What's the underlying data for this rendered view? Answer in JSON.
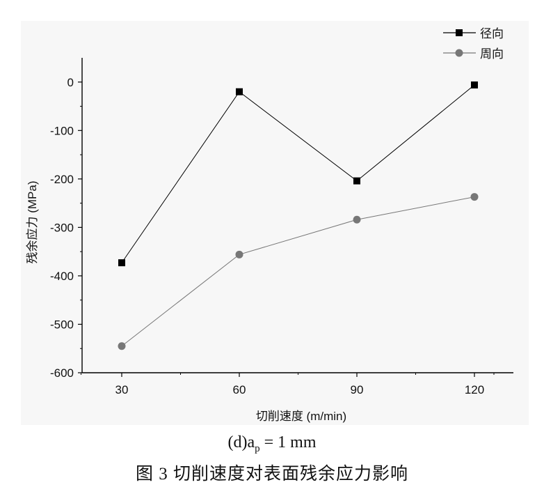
{
  "chart_data": {
    "type": "line",
    "xlabel": "切削速度 (m/min)",
    "ylabel": "残余应力 (MPa)",
    "categories": [
      30,
      60,
      90,
      120
    ],
    "yticks": [
      0,
      -100,
      -200,
      -300,
      -400,
      -500,
      -600
    ],
    "ylim": [
      -600,
      50
    ],
    "grid": false,
    "legend_position": "top-right",
    "series": [
      {
        "name": "径向",
        "values": [
          -373,
          -20,
          -204,
          -6
        ],
        "color": "#000000",
        "marker": "square"
      },
      {
        "name": "周向",
        "values": [
          -545,
          -356,
          -284,
          -237
        ],
        "color": "#777777",
        "marker": "circle"
      }
    ]
  },
  "caption": {
    "sub_prefix": "(d)a",
    "sub_subscript": "p",
    "sub_suffix": "= 1 mm",
    "figure": "图 3 切削速度对表面残余应力影响"
  }
}
